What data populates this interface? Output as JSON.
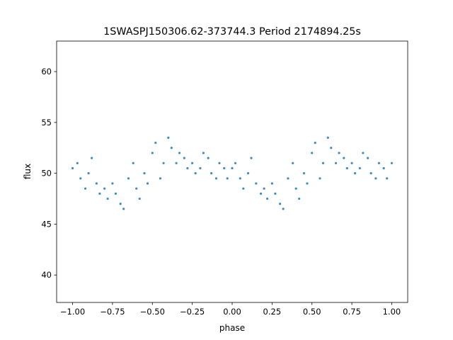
{
  "chart_data": {
    "type": "scatter",
    "title": "1SWASPJ150306.62-373744.3 Period 2174894.25s",
    "xlabel": "phase",
    "ylabel": "flux",
    "xlim": [
      -1.1,
      1.1
    ],
    "ylim": [
      37.3,
      63.0
    ],
    "xticks": [
      -1.0,
      -0.75,
      -0.5,
      -0.25,
      0.0,
      0.25,
      0.5,
      0.75,
      1.0
    ],
    "xtick_labels": [
      "−1.00",
      "−0.75",
      "−0.50",
      "−0.25",
      "0.00",
      "0.25",
      "0.50",
      "0.75",
      "1.00"
    ],
    "yticks": [
      40,
      45,
      50,
      55,
      60
    ],
    "ytick_labels": [
      "40",
      "45",
      "50",
      "55",
      "60"
    ],
    "grid": false,
    "color": "#1f77b4",
    "series": [
      {
        "name": "",
        "x": [
          -1.0,
          -0.97,
          -0.95,
          -0.92,
          -0.9,
          -0.88,
          -0.85,
          -0.83,
          -0.8,
          -0.78,
          -0.75,
          -0.73,
          -0.7,
          -0.68,
          -0.65,
          -0.62,
          -0.6,
          -0.58,
          -0.55,
          -0.53,
          -0.5,
          -0.48,
          -0.45,
          -0.43,
          -0.4,
          -0.38,
          -0.35,
          -0.33,
          -0.3,
          -0.28,
          -0.25,
          -0.23,
          -0.2,
          -0.18,
          -0.15,
          -0.13,
          -0.1,
          -0.08,
          -0.05,
          -0.03,
          0.0,
          0.02,
          0.05,
          0.07,
          0.1,
          0.12,
          0.15,
          0.18,
          0.2,
          0.22,
          0.25,
          0.27,
          0.3,
          0.32,
          0.35,
          0.38,
          0.4,
          0.42,
          0.45,
          0.47,
          0.5,
          0.52,
          0.55,
          0.57,
          0.6,
          0.62,
          0.65,
          0.67,
          0.7,
          0.72,
          0.75,
          0.77,
          0.8,
          0.82,
          0.85,
          0.87,
          0.9,
          0.92,
          0.95,
          0.97,
          1.0
        ],
        "y": [
          50.5,
          51.0,
          49.5,
          48.5,
          50.0,
          51.5,
          49.0,
          48.0,
          48.5,
          47.5,
          49.0,
          48.0,
          47.0,
          46.5,
          49.5,
          51.0,
          48.5,
          47.5,
          50.0,
          49.0,
          52.0,
          53.0,
          49.5,
          51.0,
          53.5,
          52.5,
          51.0,
          52.0,
          51.5,
          50.5,
          51.0,
          50.0,
          50.5,
          52.0,
          51.5,
          50.0,
          49.5,
          51.0,
          50.5,
          49.5,
          50.5,
          51.0,
          49.5,
          48.5,
          50.0,
          51.5,
          49.0,
          48.0,
          48.5,
          47.5,
          49.0,
          48.0,
          47.0,
          46.5,
          49.5,
          51.0,
          48.5,
          47.5,
          50.0,
          49.0,
          52.0,
          53.0,
          49.5,
          51.0,
          53.5,
          52.5,
          51.0,
          52.0,
          51.5,
          50.5,
          51.0,
          50.0,
          50.5,
          52.0,
          51.5,
          50.0,
          49.5,
          51.0,
          50.5,
          49.5,
          51.0
        ]
      }
    ]
  }
}
